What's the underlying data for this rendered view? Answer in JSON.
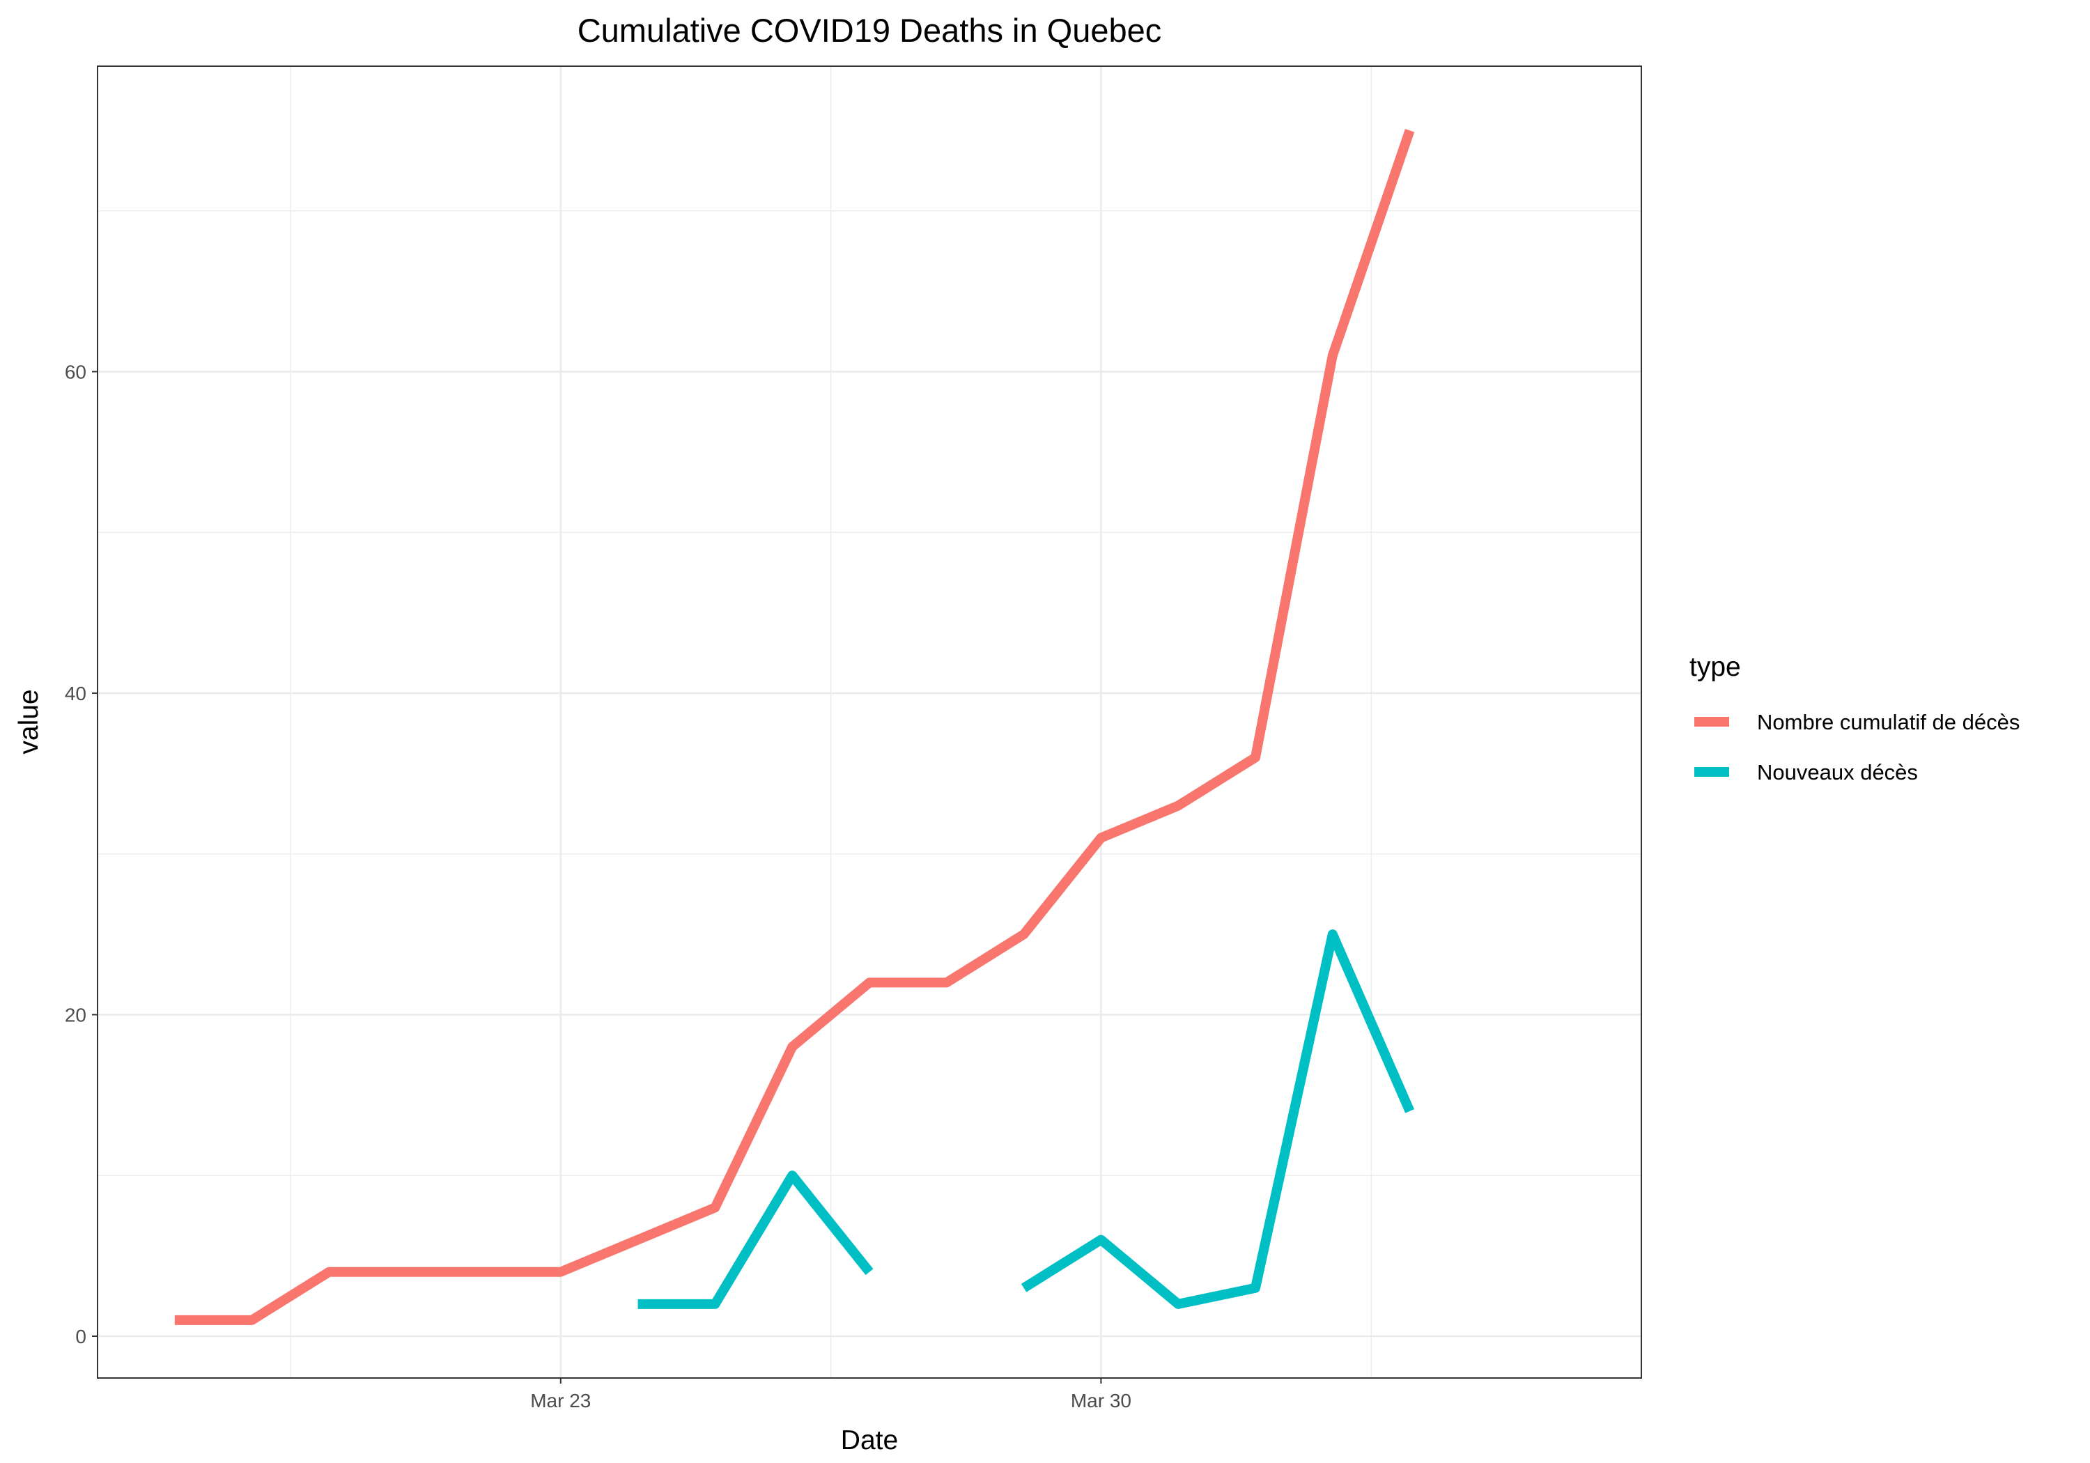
{
  "chart_data": {
    "type": "line",
    "title": "Cumulative COVID19 Deaths in Quebec",
    "xlabel": "Date",
    "ylabel": "value",
    "x_ticks": [
      {
        "date": "2020-03-23",
        "label": "Mar 23"
      },
      {
        "date": "2020-03-30",
        "label": "Mar 30"
      }
    ],
    "y_ticks": [
      0,
      20,
      40,
      60
    ],
    "xlim": [
      "2020-03-17",
      "2020-04-06"
    ],
    "ylim": [
      -2.6,
      79
    ],
    "grid": true,
    "legend": {
      "title": "type",
      "placement": "right"
    },
    "series": [
      {
        "name": "Nombre cumulatif de décès",
        "color": "#F8766D",
        "points": [
          {
            "x": "2020-03-18",
            "y": 1
          },
          {
            "x": "2020-03-19",
            "y": 1
          },
          {
            "x": "2020-03-20",
            "y": 4
          },
          {
            "x": "2020-03-21",
            "y": 4
          },
          {
            "x": "2020-03-22",
            "y": 4
          },
          {
            "x": "2020-03-23",
            "y": 4
          },
          {
            "x": "2020-03-24",
            "y": 6
          },
          {
            "x": "2020-03-25",
            "y": 8
          },
          {
            "x": "2020-03-26",
            "y": 18
          },
          {
            "x": "2020-03-27",
            "y": 22
          },
          {
            "x": "2020-03-28",
            "y": 22
          },
          {
            "x": "2020-03-29",
            "y": 25
          },
          {
            "x": "2020-03-30",
            "y": 31
          },
          {
            "x": "2020-03-31",
            "y": 33
          },
          {
            "x": "2020-04-01",
            "y": 36
          },
          {
            "x": "2020-04-02",
            "y": 61
          },
          {
            "x": "2020-04-03",
            "y": 75
          }
        ]
      },
      {
        "name": "Nouveaux décès",
        "color": "#00BFC4",
        "points": [
          {
            "x": "2020-03-24",
            "y": 2
          },
          {
            "x": "2020-03-25",
            "y": 2
          },
          {
            "x": "2020-03-26",
            "y": 10
          },
          {
            "x": "2020-03-27",
            "y": 4
          },
          {
            "x": "2020-03-28",
            "y": null
          },
          {
            "x": "2020-03-29",
            "y": 3
          },
          {
            "x": "2020-03-30",
            "y": 6
          },
          {
            "x": "2020-03-31",
            "y": 2
          },
          {
            "x": "2020-04-01",
            "y": 3
          },
          {
            "x": "2020-04-02",
            "y": 25
          },
          {
            "x": "2020-04-03",
            "y": 14
          }
        ]
      }
    ]
  }
}
